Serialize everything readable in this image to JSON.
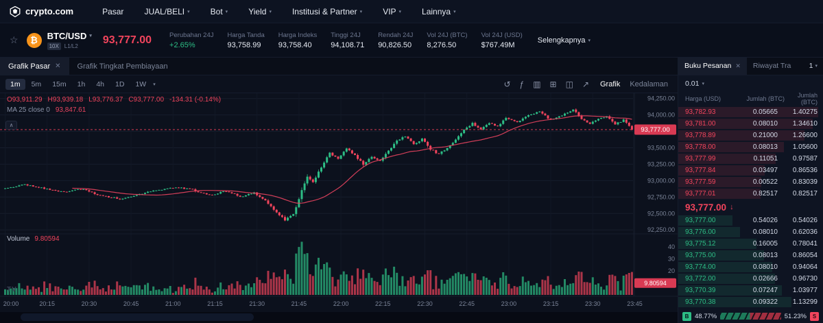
{
  "colors": {
    "red": "#f1445c",
    "green": "#2dbd85",
    "tag_red": "#d93a53",
    "ma": "#e8445f",
    "blue": "#1199fa",
    "grid": "#161d2c",
    "grid_v": "#121826",
    "axis_text": "#7b8498"
  },
  "nav": {
    "brand": "crypto.com",
    "items": [
      {
        "label": "Pasar",
        "caret": false
      },
      {
        "label": "JUAL/BELI",
        "caret": true
      },
      {
        "label": "Bot",
        "caret": true
      },
      {
        "label": "Yield",
        "caret": true
      },
      {
        "label": "Institusi & Partner",
        "caret": true
      },
      {
        "label": "VIP",
        "caret": true
      },
      {
        "label": "Lainnya",
        "caret": true
      }
    ]
  },
  "ticker": {
    "pair": "BTC/USD",
    "leverage": "10X",
    "orderbook_levels": "L1/L2",
    "price": "93,777.00",
    "stats": [
      {
        "label": "Perubahan 24J",
        "value": "+2.65%",
        "positive": true
      },
      {
        "label": "Harga Tanda",
        "value": "93,758.99"
      },
      {
        "label": "Harga Indeks",
        "value": "93,758.40"
      },
      {
        "label": "Tinggi 24J",
        "value": "94,108.71"
      },
      {
        "label": "Rendah 24J",
        "value": "90,826.50"
      },
      {
        "label": "Vol 24J (BTC)",
        "value": "8,276.50"
      },
      {
        "label": "Vol 24J (USD)",
        "value": "$767.49M"
      }
    ],
    "more_label": "Selengkapnya"
  },
  "chart_panel": {
    "tabs": [
      {
        "label": "Grafik Pasar",
        "active": true,
        "closable": true
      },
      {
        "label": "Grafik Tingkat Pembiayaan",
        "active": false,
        "closable": false
      }
    ],
    "timeframes": [
      "1m",
      "5m",
      "15m",
      "1h",
      "4h",
      "1D",
      "1W"
    ],
    "active_timeframe": "1m",
    "tool_icons": [
      {
        "name": "undo-icon",
        "glyph": "↺"
      },
      {
        "name": "indicators-icon",
        "glyph": "ƒ"
      },
      {
        "name": "candle-style-icon",
        "glyph": "▥"
      },
      {
        "name": "grid-layout-icon",
        "glyph": "⊞"
      },
      {
        "name": "snapshot-icon",
        "glyph": "◫"
      },
      {
        "name": "fullscreen-icon",
        "glyph": "↗"
      }
    ],
    "view_tabs": [
      "Grafik",
      "Kedalaman"
    ],
    "active_view": "Grafik",
    "legend": {
      "o": "O93,911.29",
      "h": "H93,939.18",
      "l": "L93,776.37",
      "c": "C93,777.00",
      "change": "-134.31 (-0.14%)",
      "ma_label": "MA 25 close 0",
      "ma_value": "93,847.61"
    },
    "volume_label": "Volume",
    "volume_value": "9.80594"
  },
  "chart_data": {
    "type": "candlestick+volume",
    "pair": "BTC/USD",
    "interval": "1m",
    "title": "BTC/USD 1m candlestick chart with MA(25) overlay and volume",
    "x_start": "20:00",
    "x_end": "23:45",
    "minutes": 225,
    "ylim": [
      92200,
      94330
    ],
    "last_price": 93777.0,
    "price_tag": "93,777.00",
    "volume_tag": "9.80594",
    "ohlc_current": {
      "open": 93911.29,
      "high": 93939.18,
      "low": 93776.37,
      "close": 93777.0,
      "change": -134.31,
      "change_pct": -0.14
    },
    "ma": {
      "period": 25,
      "value": 93847.61
    },
    "volume_current": 9.80594,
    "gridlines": [
      94250,
      94000,
      93750,
      93500,
      93250,
      93000,
      92750,
      92500,
      92250
    ],
    "price_axis": [
      {
        "price": 94250,
        "label": "94,250.00"
      },
      {
        "price": 94000,
        "label": "94,000.00"
      },
      {
        "price": 93500,
        "label": "93,500.00"
      },
      {
        "price": 93250,
        "label": "93,250.00"
      },
      {
        "price": 93000,
        "label": "93,000.00"
      },
      {
        "price": 92750,
        "label": "92,750.00"
      },
      {
        "price": 92500,
        "label": "92,500.00"
      },
      {
        "price": 92250,
        "label": "92,250.00"
      }
    ],
    "volume_axis": [
      {
        "v": 40,
        "label": "40"
      },
      {
        "v": 30,
        "label": "30"
      },
      {
        "v": 20,
        "label": "20"
      }
    ],
    "time_labels": [
      "20:00",
      "20:15",
      "20:30",
      "20:45",
      "21:00",
      "21:15",
      "21:30",
      "21:45",
      "22:00",
      "22:15",
      "22:30",
      "22:45",
      "23:00",
      "23:15",
      "23:30",
      "23:45"
    ],
    "anchors": [
      [
        0,
        92870
      ],
      [
        8,
        92940
      ],
      [
        15,
        92880
      ],
      [
        22,
        92820
      ],
      [
        28,
        92870
      ],
      [
        35,
        92780
      ],
      [
        42,
        92720
      ],
      [
        48,
        92780
      ],
      [
        55,
        92850
      ],
      [
        62,
        92900
      ],
      [
        68,
        92860
      ],
      [
        74,
        92780
      ],
      [
        80,
        92840
      ],
      [
        85,
        92760
      ],
      [
        90,
        92810
      ],
      [
        94,
        92700
      ],
      [
        98,
        92520
      ],
      [
        101,
        92400
      ],
      [
        104,
        92480
      ],
      [
        107,
        92850
      ],
      [
        109,
        93050
      ],
      [
        111,
        92980
      ],
      [
        114,
        93200
      ],
      [
        117,
        93420
      ],
      [
        120,
        93330
      ],
      [
        123,
        93500
      ],
      [
        126,
        93380
      ],
      [
        129,
        93250
      ],
      [
        132,
        93360
      ],
      [
        135,
        93300
      ],
      [
        138,
        93460
      ],
      [
        141,
        93600
      ],
      [
        144,
        93680
      ],
      [
        147,
        93560
      ],
      [
        150,
        93630
      ],
      [
        153,
        93480
      ],
      [
        156,
        93400
      ],
      [
        159,
        93500
      ],
      [
        162,
        93620
      ],
      [
        165,
        93780
      ],
      [
        168,
        93870
      ],
      [
        171,
        93790
      ],
      [
        174,
        93880
      ],
      [
        177,
        93820
      ],
      [
        180,
        93960
      ],
      [
        184,
        93890
      ],
      [
        188,
        93990
      ],
      [
        192,
        94060
      ],
      [
        196,
        93920
      ],
      [
        200,
        93990
      ],
      [
        204,
        94080
      ],
      [
        207,
        93940
      ],
      [
        210,
        93870
      ],
      [
        213,
        93930
      ],
      [
        216,
        93990
      ],
      [
        219,
        93860
      ],
      [
        222,
        93920
      ],
      [
        225,
        93777
      ]
    ],
    "synth": {
      "noise": 22,
      "wick_base": 3,
      "wick_k": 0.35,
      "wick_cap": 60,
      "vol_base": 1.2,
      "vol_k": 0.3,
      "vol_noise": 4,
      "vol_max": 46
    }
  },
  "orderbook": {
    "tabs": [
      {
        "label": "Buku Pesanan",
        "active": true,
        "closable": true
      },
      {
        "label": "Riwayat Tra",
        "active": false,
        "closable": false
      }
    ],
    "page": "1",
    "precision": "0.01",
    "columns": [
      "Harga (USD)",
      "Jumlah (BTC)",
      "Jumlah (BTC)"
    ],
    "depth_max": 1.45,
    "asks": [
      [
        "93,782.93",
        "0.05665",
        "1.40275"
      ],
      [
        "93,781.00",
        "0.08010",
        "1.34610"
      ],
      [
        "93,778.89",
        "0.21000",
        "1.26600"
      ],
      [
        "93,778.00",
        "0.08013",
        "1.05600"
      ],
      [
        "93,777.99",
        "0.11051",
        "0.97587"
      ],
      [
        "93,777.84",
        "0.03497",
        "0.86536"
      ],
      [
        "93,777.59",
        "0.00522",
        "0.83039"
      ],
      [
        "93,777.01",
        "0.82517",
        "0.82517"
      ]
    ],
    "mid": "93,777.00",
    "mid_arrow": "↓",
    "bids": [
      [
        "93,777.00",
        "0.54026",
        "0.54026"
      ],
      [
        "93,776.00",
        "0.08010",
        "0.62036"
      ],
      [
        "93,775.12",
        "0.16005",
        "0.78041"
      ],
      [
        "93,775.00",
        "0.08013",
        "0.86054"
      ],
      [
        "93,774.00",
        "0.08010",
        "0.94064"
      ],
      [
        "93,772.00",
        "0.02666",
        "0.96730"
      ],
      [
        "93,770.39",
        "0.07247",
        "1.03977"
      ],
      [
        "93,770.38",
        "0.09322",
        "1.13299"
      ]
    ],
    "buy_label": "B",
    "buy_pct": "48.77%",
    "sell_label": "S",
    "sell_pct": "51.23%"
  }
}
